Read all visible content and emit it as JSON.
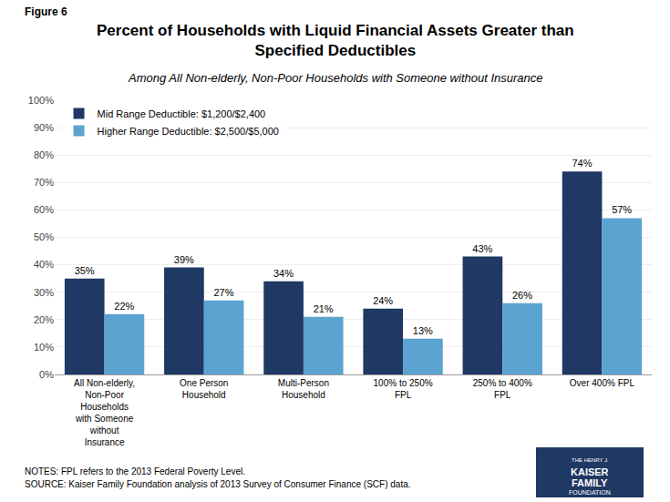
{
  "chart_data": {
    "type": "bar",
    "figure_label": "Figure 6",
    "title": "Percent of Households with Liquid Financial Assets Greater than\nSpecified Deductibles",
    "subtitle": "Among All Non-elderly, Non-Poor Households with Someone without Insurance",
    "categories": [
      "All Non-elderly,\nNon-Poor\nHouseholds\nwith Someone\nwithout\nInsurance",
      "One Person\nHousehold",
      "Multi-Person\nHousehold",
      "100% to 250%\nFPL",
      "250% to 400%\nFPL",
      "Over 400% FPL"
    ],
    "series": [
      {
        "name": "Mid Range Deductible: $1,200/$2,400",
        "color": "#1f3864",
        "values": [
          35,
          39,
          34,
          24,
          43,
          74
        ],
        "value_labels": [
          "35%",
          "39%",
          "34%",
          "24%",
          "43%",
          "74%"
        ]
      },
      {
        "name": "Higher Range Deductible: $2,500/$5,000",
        "color": "#5ba3d0",
        "values": [
          22,
          27,
          21,
          13,
          26,
          57
        ],
        "value_labels": [
          "22%",
          "27%",
          "21%",
          "13%",
          "26%",
          "57%"
        ]
      }
    ],
    "ylim": [
      0,
      100
    ],
    "yticks": [
      {
        "value": 0,
        "label": "0%"
      },
      {
        "value": 10,
        "label": "10%"
      },
      {
        "value": 20,
        "label": "20%"
      },
      {
        "value": 30,
        "label": "30%"
      },
      {
        "value": 40,
        "label": "40%"
      },
      {
        "value": 50,
        "label": "50%"
      },
      {
        "value": 60,
        "label": "60%"
      },
      {
        "value": 70,
        "label": "70%"
      },
      {
        "value": 80,
        "label": "80%"
      },
      {
        "value": 90,
        "label": "90%"
      },
      {
        "value": 100,
        "label": "100%"
      }
    ],
    "grid": true,
    "legend": "upper left",
    "data_labels": true,
    "notes": [
      "NOTES: FPL refers to the 2013 Federal Poverty Level.",
      "SOURCE: Kaiser Family Foundation analysis of 2013 Survey of Consumer Finance (SCF) data."
    ],
    "logo": {
      "text": [
        "THE HENRY J.",
        "KAISER",
        "FAMILY",
        "FOUNDATION"
      ],
      "color": "#1f3864"
    }
  }
}
